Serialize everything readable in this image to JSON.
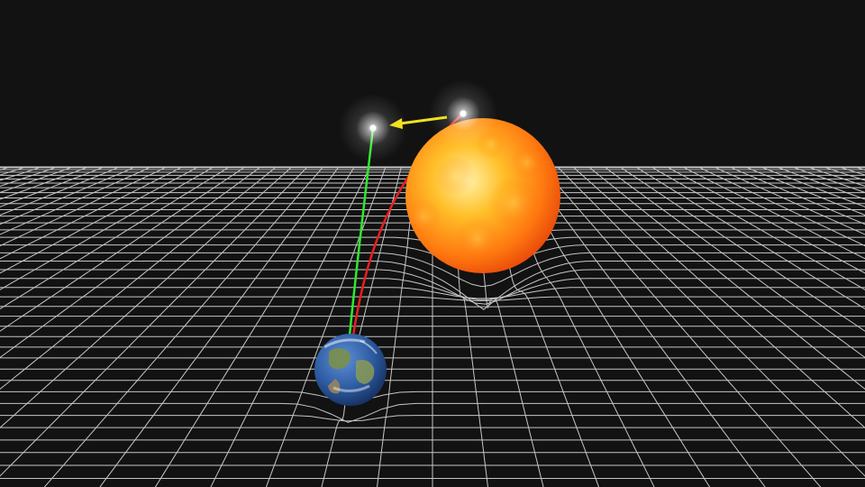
{
  "scene": {
    "description_visible_text": "",
    "colors": {
      "background": "#121212",
      "grid_lines": "#e6e6e6",
      "sun_core": "#ffd23a",
      "sun_edge": "#ff6a00",
      "earth_ocean": "#2f5da8",
      "earth_land": "#7a8f4a",
      "apparent_ray": "#2ee82e",
      "true_ray": "#e81e1e",
      "shift_arrow": "#f0e020",
      "star_glow": "#ffffff"
    },
    "objects": {
      "sun": {
        "icon": "sun-sphere"
      },
      "earth": {
        "icon": "earth-globe"
      },
      "true_star": {
        "icon": "star-point"
      },
      "apparent_star": {
        "icon": "star-point"
      },
      "deflection_arrow": {
        "icon": "arrow-left"
      }
    }
  }
}
